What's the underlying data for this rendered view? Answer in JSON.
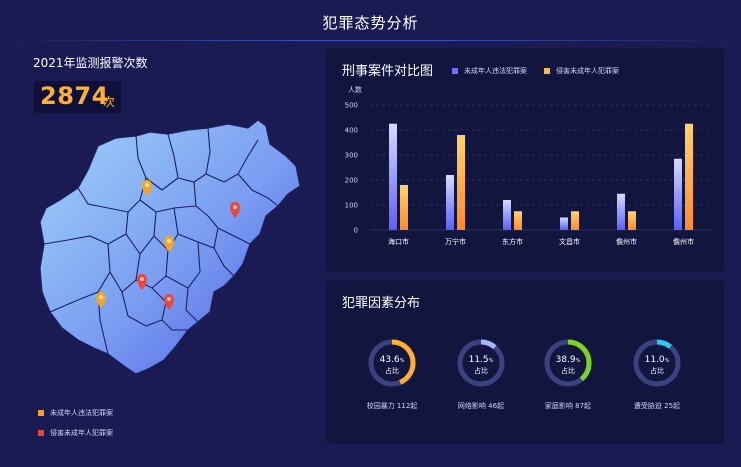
{
  "header": {
    "title": "犯罪态势分析"
  },
  "left": {
    "title": "2021年监测报警次数",
    "count": "2874",
    "count_unit": "次",
    "legend": [
      {
        "label": "未成年人违法犯罪案",
        "color": "#f5a524"
      },
      {
        "label": "侵害未成年人犯罪案",
        "color": "#e8483b"
      }
    ],
    "markers": [
      {
        "type": "orange"
      },
      {
        "type": "red"
      },
      {
        "type": "orange"
      },
      {
        "type": "red"
      },
      {
        "type": "orange"
      },
      {
        "type": "red"
      }
    ]
  },
  "bar_panel": {
    "title": "刑事案件对比图",
    "colors": {
      "series1": "#6b72ff",
      "series2": "#ffb84a"
    }
  },
  "chart_data": {
    "type": "bar",
    "ylabel": "人数",
    "ylim": [
      0,
      500
    ],
    "yticks": [
      "0",
      "100",
      "200",
      "300",
      "400",
      "500"
    ],
    "categories": [
      "海口市",
      "万宁市",
      "东方市",
      "文昌市",
      "儋州市",
      "儋州市"
    ],
    "series": [
      {
        "name": "未成年人违法犯罪案",
        "values": [
          425,
          220,
          120,
          50,
          145,
          285
        ]
      },
      {
        "name": "侵害未成年人犯罪案",
        "values": [
          180,
          380,
          75,
          75,
          75,
          425
        ]
      }
    ]
  },
  "factor_panel": {
    "title": "犯罪因素分布",
    "sub_label": "占比",
    "rings": [
      {
        "percent": "43.6",
        "unit": "%",
        "value": 0.436,
        "label": "校园暴力",
        "count": "112起",
        "color": "#ffb02e"
      },
      {
        "percent": "11.5",
        "unit": "%",
        "value": 0.115,
        "label": "网络影响",
        "count": "46起",
        "color": "#a9b4ff"
      },
      {
        "percent": "38.9",
        "unit": "%",
        "value": 0.389,
        "label": "家庭影响",
        "count": "87起",
        "color": "#7ed321"
      },
      {
        "percent": "11.0",
        "unit": "%",
        "value": 0.11,
        "label": "遭受胁迫",
        "count": "25起",
        "color": "#2ec7f0"
      }
    ]
  }
}
